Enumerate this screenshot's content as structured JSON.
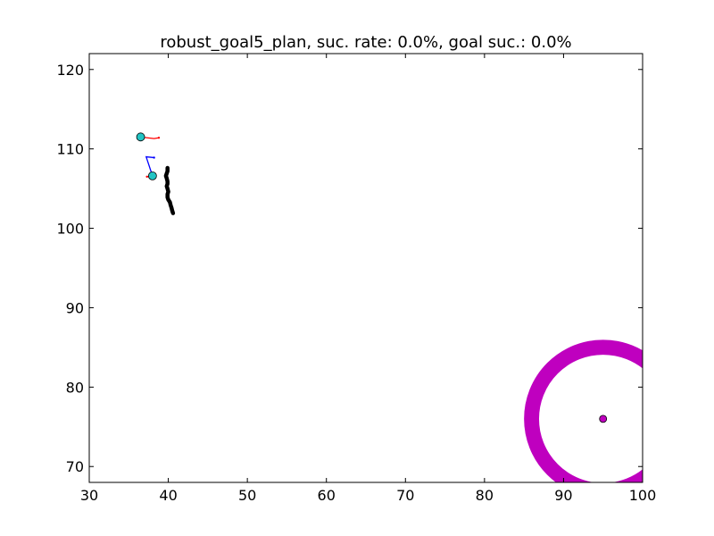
{
  "chart_data": {
    "type": "scatter",
    "title": "robust_goal5_plan, suc. rate: 0.0%, goal suc.: 0.0%",
    "xlabel": "",
    "ylabel": "",
    "xlim": [
      30,
      100
    ],
    "ylim": [
      68,
      122
    ],
    "xticks": [
      30,
      40,
      50,
      60,
      70,
      80,
      90,
      100
    ],
    "yticks": [
      70,
      80,
      90,
      100,
      110,
      120
    ],
    "grid": false,
    "series": [
      {
        "kind": "path",
        "color": "#000000",
        "points": [
          [
            39.9,
            107.6
          ],
          [
            39.9,
            107.2
          ],
          [
            39.8,
            106.9
          ],
          [
            39.7,
            106.6
          ],
          [
            39.8,
            106.3
          ],
          [
            39.9,
            105.9
          ],
          [
            39.9,
            105.6
          ],
          [
            39.8,
            105.3
          ],
          [
            39.9,
            105.0
          ],
          [
            40.0,
            104.6
          ],
          [
            39.9,
            104.3
          ],
          [
            39.9,
            103.9
          ],
          [
            40.0,
            103.6
          ],
          [
            40.2,
            103.3
          ],
          [
            40.3,
            102.9
          ],
          [
            40.4,
            102.6
          ],
          [
            40.5,
            102.2
          ],
          [
            40.6,
            101.9
          ]
        ]
      },
      {
        "kind": "agent",
        "marker_color": "#22c4c4",
        "position": [
          36.5,
          111.5
        ],
        "segments": [
          {
            "color": "#ff0000",
            "points": [
              [
                36.5,
                111.5
              ],
              [
                38.2,
                111.3
              ],
              [
                38.8,
                111.4
              ]
            ]
          }
        ]
      },
      {
        "kind": "agent",
        "marker_color": "#22c4c4",
        "position": [
          38.0,
          106.6
        ],
        "segments": [
          {
            "color": "#0000ff",
            "points": [
              [
                38.0,
                106.6
              ],
              [
                37.2,
                109.0
              ],
              [
                38.2,
                108.9
              ]
            ]
          },
          {
            "color": "#ff0000",
            "points": [
              [
                38.0,
                106.6
              ],
              [
                37.3,
                106.5
              ]
            ]
          }
        ]
      }
    ],
    "goal": {
      "center": [
        95.0,
        76.0
      ],
      "inner_radius": 8.1,
      "outer_radius": 10.0,
      "color": "#bf00bf"
    }
  }
}
